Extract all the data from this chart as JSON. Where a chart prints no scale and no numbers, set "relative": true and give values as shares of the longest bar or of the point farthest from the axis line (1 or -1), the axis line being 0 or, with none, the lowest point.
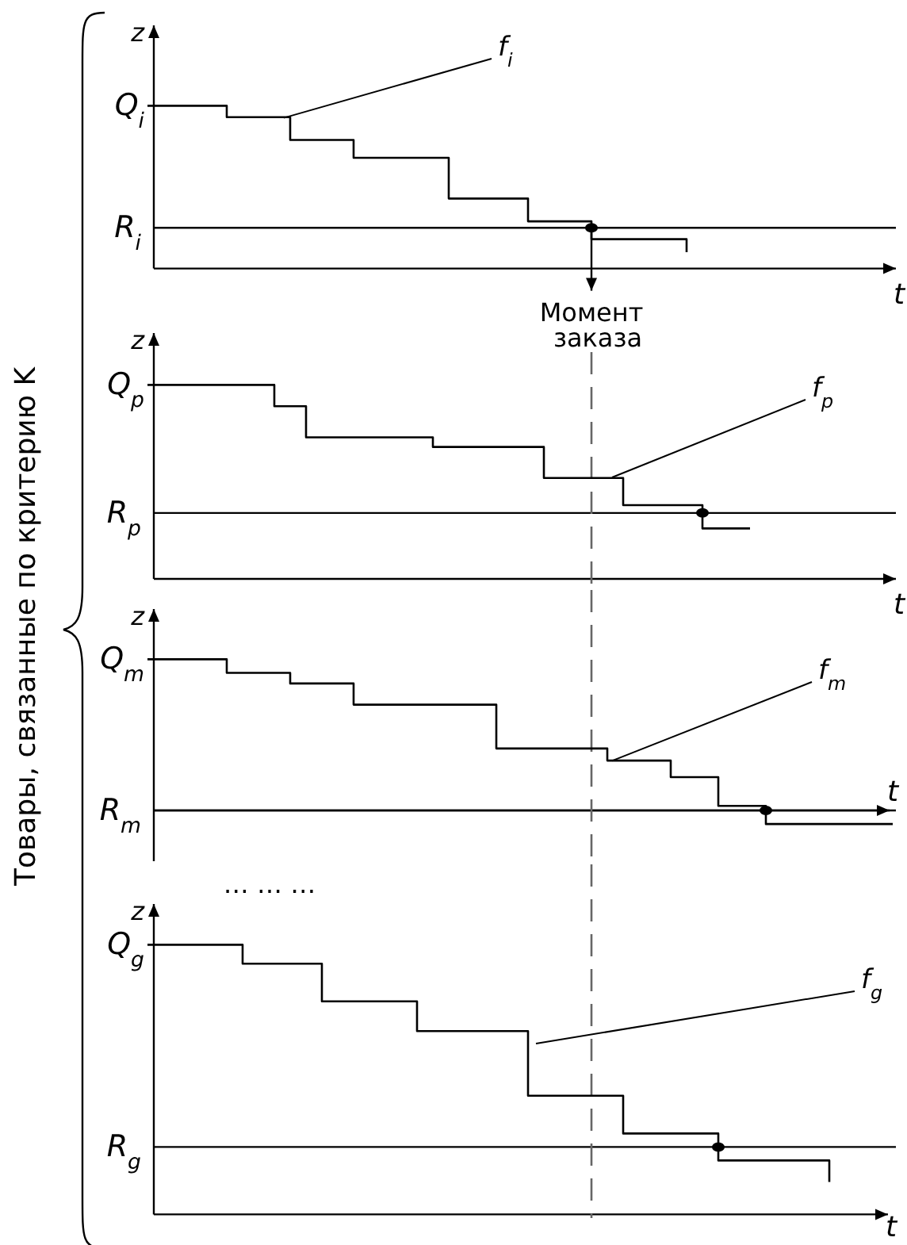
{
  "chart_data": [
    {
      "type": "step",
      "relative": true,
      "xlabel": "t",
      "ylabel": "z",
      "categories": [
        null,
        null,
        null,
        null,
        null,
        null,
        null,
        null,
        null,
        null,
        null,
        null,
        null,
        null,
        null,
        null,
        null,
        null,
        null,
        null,
        null,
        null,
        null,
        null,
        null,
        null,
        null,
        null,
        null,
        null,
        null,
        null,
        null,
        null,
        null,
        null,
        null,
        null,
        null,
        null,
        null,
        null,
        null,
        null,
        null,
        null,
        null,
        null
      ],
      "series": [
        {
          "color": "#000000",
          "values": [
            1,
            1,
            1,
            1,
            1,
            0.93,
            0.93,
            0.93,
            0.93,
            0.79,
            0.79,
            0.79,
            0.79,
            0.68,
            0.68,
            0.68,
            0.68,
            0.68,
            0.68,
            0.43,
            0.43,
            0.43,
            0.43,
            0.43,
            0.29,
            0.29,
            0.29,
            0.29,
            0.18,
            0.18,
            0.18,
            0.18,
            0.18,
            0.18,
            0.1,
            null,
            null,
            null,
            null,
            null,
            null,
            null,
            null,
            null,
            null,
            null,
            null,
            null
          ]
        }
      ],
      "ref_lines": [
        {
          "axis": "y",
          "value": 0.25,
          "label": "R$_{i}$",
          "color": "#000000"
        }
      ],
      "annotations": [
        "Q$_{i}$",
        "f$_{i}$",
        "Товары,  связанные по критерию K",
        "Момент заказа"
      ]
    },
    {
      "type": "step",
      "relative": true,
      "xlabel": "t",
      "ylabel": "z",
      "categories": [
        null,
        null,
        null,
        null,
        null,
        null,
        null,
        null,
        null,
        null,
        null,
        null,
        null,
        null,
        null,
        null,
        null,
        null,
        null,
        null,
        null,
        null,
        null,
        null,
        null,
        null,
        null,
        null,
        null,
        null,
        null,
        null,
        null,
        null,
        null,
        null,
        null,
        null,
        null,
        null,
        null,
        null,
        null,
        null,
        null,
        null,
        null,
        null
      ],
      "series": [
        {
          "color": "#000000",
          "values": [
            1,
            1,
            1,
            1,
            1,
            1,
            1,
            1,
            0.89,
            0.89,
            0.73,
            0.73,
            0.73,
            0.73,
            0.73,
            0.73,
            0.73,
            0.73,
            0.68,
            0.68,
            0.68,
            0.68,
            0.68,
            0.68,
            0.68,
            0.52,
            0.52,
            0.52,
            0.52,
            0.52,
            0.38,
            0.38,
            0.38,
            0.38,
            0.38,
            0.26,
            0.26,
            0.26,
            0.26,
            null,
            null,
            null,
            null,
            null,
            null,
            null,
            null,
            null
          ]
        }
      ],
      "ref_lines": [
        {
          "axis": "y",
          "value": 0.34,
          "label": "R$_{p}$",
          "color": "#000000"
        }
      ],
      "annotations": [
        "Q$_{p}$",
        "f$_{p}$"
      ]
    },
    {
      "type": "step",
      "relative": true,
      "xlabel": "t",
      "ylabel": "z",
      "categories": [
        null,
        null,
        null,
        null,
        null,
        null,
        null,
        null,
        null,
        null,
        null,
        null,
        null,
        null,
        null,
        null,
        null,
        null,
        null,
        null,
        null,
        null,
        null,
        null,
        null,
        null,
        null,
        null,
        null,
        null,
        null,
        null,
        null,
        null,
        null,
        null,
        null,
        null,
        null,
        null,
        null,
        null,
        null,
        null,
        null,
        null,
        null,
        null
      ],
      "series": [
        {
          "color": "#000000",
          "values": [
            1,
            1,
            1,
            1,
            1,
            0.91,
            0.91,
            0.91,
            0.91,
            0.84,
            0.84,
            0.84,
            0.84,
            0.7,
            0.7,
            0.7,
            0.7,
            0.7,
            0.7,
            0.7,
            0.7,
            0.7,
            0.41,
            0.41,
            0.41,
            0.41,
            0.41,
            0.41,
            0.41,
            0.33,
            0.33,
            0.33,
            0.33,
            0.22,
            0.22,
            0.22,
            0.03,
            0.03,
            0.03,
            -0.09,
            -0.09,
            -0.09,
            -0.09,
            -0.09,
            -0.09,
            -0.09,
            -0.09,
            -0.09
          ]
        }
      ],
      "ref_lines": [
        {
          "axis": "y",
          "value": 0,
          "label": "R$_{m}$",
          "color": "#000000"
        }
      ],
      "annotations": [
        "Q$_{m}$",
        "f$_{m}$"
      ]
    },
    {
      "type": "step",
      "relative": true,
      "xlabel": "t",
      "ylabel": "z",
      "categories": [
        null,
        null,
        null,
        null,
        null,
        null,
        null,
        null,
        null,
        null,
        null,
        null,
        null,
        null,
        null,
        null,
        null,
        null,
        null,
        null,
        null,
        null,
        null,
        null,
        null,
        null,
        null,
        null,
        null,
        null,
        null,
        null,
        null,
        null,
        null,
        null,
        null,
        null,
        null,
        null,
        null,
        null,
        null,
        null,
        null,
        null,
        null,
        null
      ],
      "series": [
        {
          "color": "#000000",
          "values": [
            1,
            1,
            1,
            1,
            1,
            1,
            0.93,
            0.93,
            0.93,
            0.93,
            0.93,
            0.79,
            0.79,
            0.79,
            0.79,
            0.79,
            0.79,
            0.68,
            0.68,
            0.68,
            0.68,
            0.68,
            0.68,
            0.68,
            0.44,
            0.44,
            0.44,
            0.44,
            0.44,
            0.44,
            0.3,
            0.3,
            0.3,
            0.3,
            0.3,
            0.3,
            0.2,
            0.2,
            0.2,
            0.2,
            0.2,
            0.2,
            0.2,
            0.12,
            null,
            null,
            null,
            null
          ]
        }
      ],
      "ref_lines": [
        {
          "axis": "y",
          "value": 0.25,
          "label": "R$_{g}$",
          "color": "#000000"
        }
      ],
      "annotations": [
        "Q$_{g}$",
        "f$_{g}$",
        "…   …   …"
      ]
    }
  ]
}
